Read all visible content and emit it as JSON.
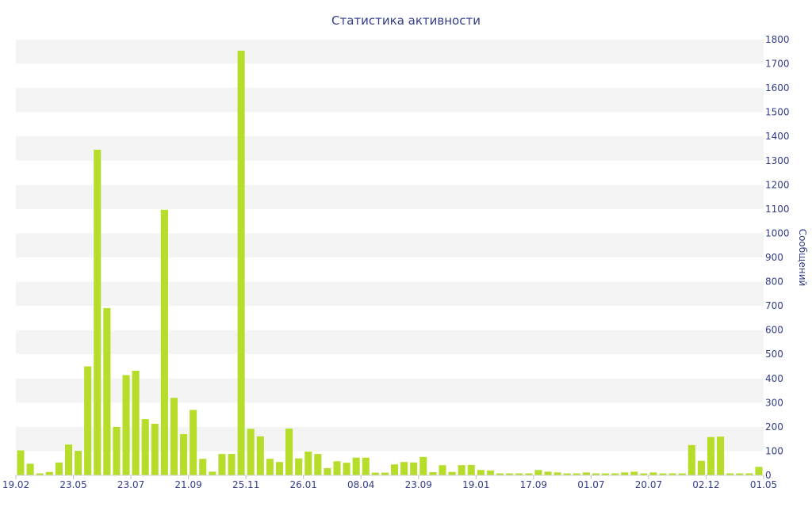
{
  "chart_data": {
    "type": "bar",
    "title": "Статистика активности",
    "xlabel": "",
    "ylabel": "Сообщений",
    "ylim": [
      0,
      1800
    ],
    "y_ticks": [
      0,
      100,
      200,
      300,
      400,
      500,
      600,
      700,
      800,
      900,
      1000,
      1100,
      1200,
      1300,
      1400,
      1500,
      1600,
      1700,
      1800
    ],
    "x_tick_labels": [
      "19.02",
      "23.05",
      "23.07",
      "21.09",
      "25.11",
      "26.01",
      "08.04",
      "23.09",
      "19.01",
      "17.09",
      "01.07",
      "20.07",
      "02.12",
      "01.05"
    ],
    "grid": "horizontal bands",
    "y_axis_side": "right",
    "bar_color": "#b5dd2a",
    "band_color": "#f4f4f4",
    "text_color": "#333d8a",
    "values": [
      103,
      48,
      8,
      14,
      53,
      127,
      101,
      450,
      1345,
      691,
      200,
      414,
      432,
      232,
      213,
      1097,
      320,
      170,
      270,
      68,
      15,
      88,
      88,
      1754,
      192,
      161,
      68,
      55,
      193,
      70,
      98,
      88,
      30,
      58,
      52,
      73,
      73,
      11,
      11,
      45,
      55,
      53,
      76,
      13,
      42,
      14,
      42,
      43,
      22,
      20,
      8,
      8,
      8,
      8,
      22,
      15,
      12,
      8,
      8,
      12,
      8,
      8,
      8,
      12,
      15,
      8,
      12,
      8,
      8,
      8,
      125,
      60,
      158,
      160,
      8,
      8,
      8,
      35
    ]
  }
}
